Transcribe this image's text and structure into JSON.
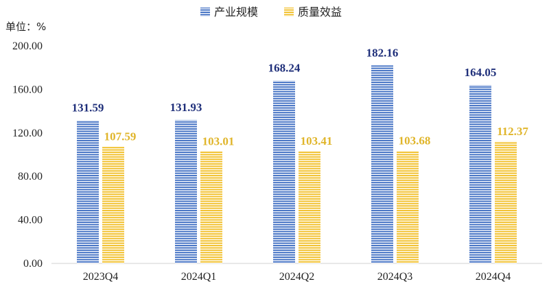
{
  "chart_data": {
    "type": "bar",
    "unit_label": "单位：%",
    "categories": [
      "2023Q4",
      "2024Q1",
      "2024Q2",
      "2024Q3",
      "2024Q4"
    ],
    "series": [
      {
        "name": "产业规模",
        "values": [
          131.59,
          131.93,
          168.24,
          182.16,
          164.05
        ],
        "labels": [
          "131.59",
          "131.93",
          "168.24",
          "182.16",
          "164.05"
        ],
        "color": "#4472C4",
        "label_color": "#1F2F7A"
      },
      {
        "name": "质量效益",
        "values": [
          107.59,
          103.01,
          103.41,
          103.68,
          112.37
        ],
        "labels": [
          "107.59",
          "103.01",
          "103.41",
          "103.68",
          "112.37"
        ],
        "color": "#F2C12E",
        "label_color": "#E0B52A"
      }
    ],
    "y_ticks": [
      "0.00",
      "40.00",
      "80.00",
      "120.00",
      "160.00",
      "200.00"
    ],
    "ylim": [
      0,
      200
    ],
    "grid": false,
    "legend_position": "top"
  }
}
